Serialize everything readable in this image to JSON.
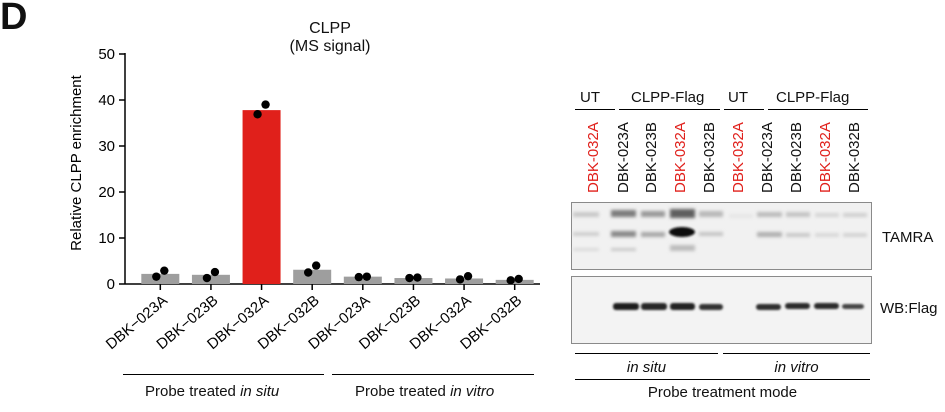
{
  "panel_letter": "D",
  "chart_data": {
    "type": "bar",
    "title": "CLPP",
    "subtitle": "(MS signal)",
    "ylabel": "Relative CLPP enrichment",
    "xlabel": "",
    "ylim": [
      0,
      50
    ],
    "yticks": [
      0,
      10,
      20,
      30,
      40,
      50
    ],
    "categories": [
      "DBK−023A",
      "DBK−023B",
      "DBK−032A",
      "DBK−032B",
      "DBK−023A",
      "DBK−023B",
      "DBK−032A",
      "DBK−032B"
    ],
    "values": [
      2.2,
      2.0,
      37.8,
      3.1,
      1.6,
      1.3,
      1.2,
      0.9
    ],
    "replicates": [
      [
        1.6,
        2.9
      ],
      [
        1.3,
        2.6
      ],
      [
        36.9,
        39.0
      ],
      [
        2.5,
        4.0
      ],
      [
        1.5,
        1.6
      ],
      [
        1.3,
        1.4
      ],
      [
        1.0,
        1.7
      ],
      [
        0.8,
        1.1
      ]
    ],
    "highlight_index": 2,
    "colors": {
      "default": "#9e9e9e",
      "highlight": "#e0201b",
      "dot": "#000000"
    },
    "groups": [
      {
        "prefix": "Probe treated ",
        "italic": "in situ"
      },
      {
        "prefix": "Probe treated ",
        "italic": "in vitro"
      }
    ]
  },
  "blot": {
    "header_groups": [
      "UT",
      "CLPP-Flag",
      "UT",
      "CLPP-Flag"
    ],
    "lanes": [
      {
        "label": "DBK-032A",
        "red": true
      },
      {
        "label": "DBK-023A",
        "red": false
      },
      {
        "label": "DBK-023B",
        "red": false
      },
      {
        "label": "DBK-032A",
        "red": true
      },
      {
        "label": "DBK-032B",
        "red": false
      },
      {
        "label": "DBK-032A",
        "red": true
      },
      {
        "label": "DBK-023A",
        "red": false
      },
      {
        "label": "DBK-023B",
        "red": false
      },
      {
        "label": "DBK-032A",
        "red": true
      },
      {
        "label": "DBK-032B",
        "red": false
      }
    ],
    "top_label": "TAMRA",
    "bottom_label": "WB:Flag",
    "mode_groups": [
      "in situ",
      "in vitro"
    ],
    "mode_title": "Probe treatment mode"
  }
}
